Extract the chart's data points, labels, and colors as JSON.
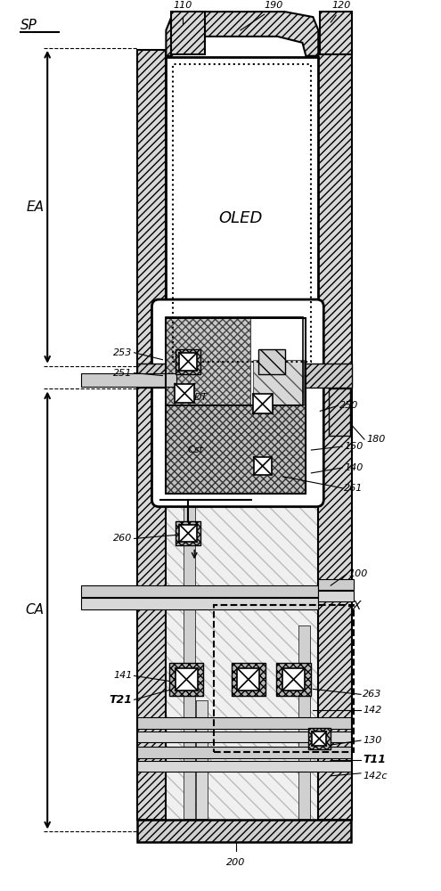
{
  "bg": "#ffffff",
  "lc": "#000000",
  "wall_fc": "#d8d8d8",
  "tft_fc": "#f0f0f0",
  "comp_fc": "#c0c0c0",
  "gray_bar": "#cccccc",
  "labels_right": [
    [
      "180",
      412,
      510,
      394,
      528
    ],
    [
      "250",
      382,
      548,
      360,
      542
    ],
    [
      "150",
      387,
      502,
      350,
      498
    ],
    [
      "140",
      387,
      478,
      350,
      472
    ],
    [
      "261",
      387,
      455,
      318,
      468
    ],
    [
      "100",
      392,
      358,
      372,
      345
    ],
    [
      "263",
      408,
      222,
      352,
      228
    ],
    [
      "142",
      408,
      204,
      352,
      204
    ],
    [
      "130",
      408,
      170,
      372,
      165
    ]
  ],
  "labels_left": [
    [
      "253",
      148,
      608,
      182,
      600
    ],
    [
      "251",
      148,
      585,
      182,
      582
    ],
    [
      "260",
      148,
      398,
      197,
      402
    ],
    [
      "141",
      148,
      243,
      190,
      237
    ]
  ]
}
